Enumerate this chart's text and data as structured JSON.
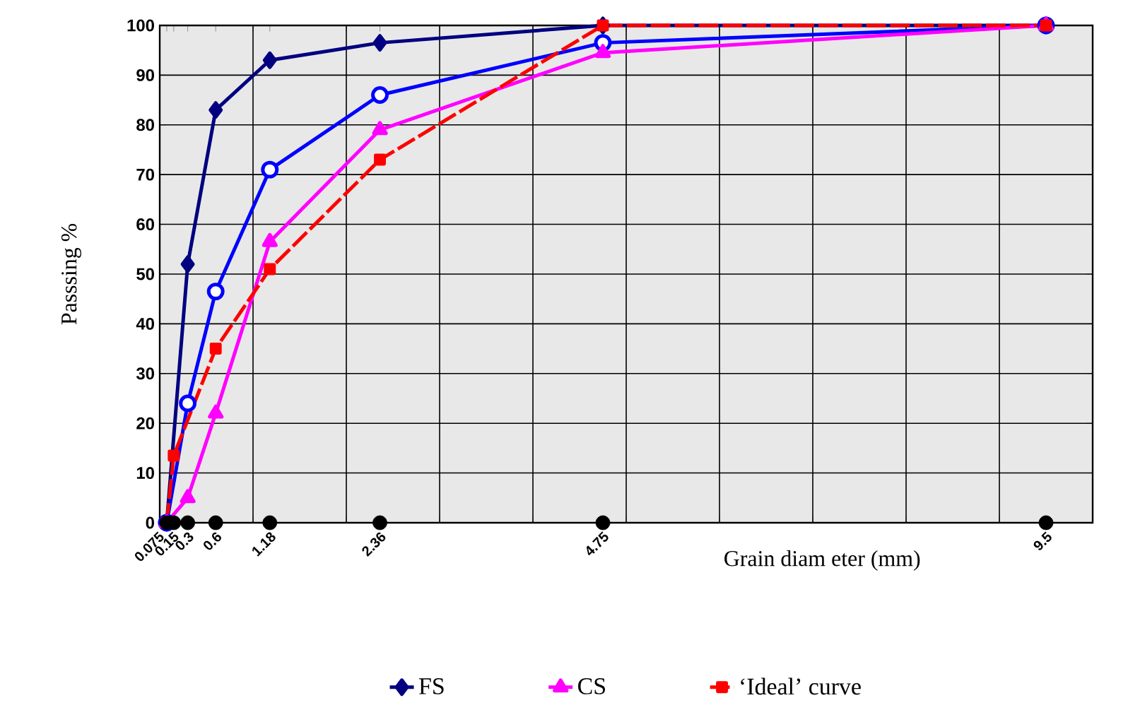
{
  "chart_data": {
    "type": "line",
    "xlabel": "Grain diam eter (mm)",
    "ylabel": "Passsing %",
    "xlim": [
      0,
      10
    ],
    "ylim": [
      0,
      100
    ],
    "xticks": [
      0.075,
      0.15,
      0.3,
      0.6,
      1.18,
      2.36,
      4.75,
      9.5,
      {
        "value": 1,
        "label": null
      },
      {
        "value": 2,
        "label": null
      },
      {
        "value": 3,
        "label": null
      },
      {
        "value": 4,
        "label": null
      },
      {
        "value": 5,
        "label": null
      },
      {
        "value": 6,
        "label": null
      },
      {
        "value": 7,
        "label": null
      },
      {
        "value": 8,
        "label": null
      },
      {
        "value": 9,
        "label": null
      },
      {
        "value": 10,
        "label": null
      }
    ],
    "yticks": [
      0,
      10,
      20,
      30,
      40,
      50,
      60,
      70,
      80,
      90,
      100
    ],
    "grid": true,
    "legend": "bottom",
    "series": [
      {
        "name": "FS",
        "color": "#000080",
        "marker": "diamond",
        "x": [
          0.075,
          0.3,
          0.6,
          1.18,
          2.36,
          4.75,
          9.5
        ],
        "values": [
          0,
          52,
          83,
          93,
          96.5,
          100,
          100
        ]
      },
      {
        "color": "#0000ff",
        "marker": "circle",
        "x": [
          0.075,
          0.3,
          0.6,
          1.18,
          2.36,
          4.75,
          9.5
        ],
        "values": [
          0,
          24,
          46.5,
          71,
          86,
          96.5,
          100
        ]
      },
      {
        "name": "CS",
        "color": "#ff00ff",
        "marker": "triangle",
        "x": [
          0.075,
          0.3,
          0.6,
          1.18,
          2.36,
          4.75,
          9.5
        ],
        "values": [
          0,
          5,
          22,
          56.5,
          79,
          94.5,
          100
        ]
      },
      {
        "name": "‘Ideal’ curve",
        "color": "#ff0000",
        "marker": "square",
        "line_style": "dashed",
        "x": [
          0.075,
          0.15,
          0.6,
          1.18,
          2.36,
          4.75,
          9.5
        ],
        "values": [
          0,
          13.5,
          35,
          51,
          73,
          100,
          100
        ]
      },
      {
        "type": "scatter",
        "color": "#000000",
        "marker": "circle",
        "x": [
          0.075,
          0.15,
          0.3,
          0.6,
          1.18,
          2.36,
          4.75,
          9.5
        ],
        "values": [
          0,
          0,
          0,
          0,
          0,
          0,
          0,
          0
        ]
      }
    ]
  }
}
